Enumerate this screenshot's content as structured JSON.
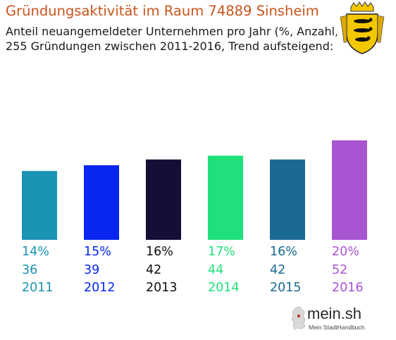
{
  "header": {
    "title": "Gründungsaktivität im Raum 74889 Sinsheim",
    "subtitle_line1": "Anteil neuangemeldeter Unternehmen pro Jahr (%, Anzahl, Jahr)",
    "subtitle_line2": "255 Gründungen zwischen 2011-2016, Trend aufsteigend:"
  },
  "crest": {
    "icon": "baden-wuerttemberg-coat-of-arms-icon"
  },
  "logo": {
    "name": "mein.sh",
    "tagline": "Mein StadtHandbuch"
  },
  "chart_data": {
    "type": "bar",
    "categories": [
      "2011",
      "2012",
      "2013",
      "2014",
      "2015",
      "2016"
    ],
    "values": [
      36,
      39,
      42,
      44,
      42,
      52
    ],
    "percent_labels": [
      "14%",
      "15%",
      "16%",
      "17%",
      "16%",
      "20%"
    ],
    "count_labels": [
      "36",
      "39",
      "42",
      "44",
      "42",
      "52"
    ],
    "colors": [
      "#1b93b3",
      "#0826f0",
      "#130f36",
      "#1fe07a",
      "#1b6a93",
      "#a855d2"
    ],
    "ylim": [
      0,
      52
    ],
    "grid": false,
    "legend": "none"
  }
}
